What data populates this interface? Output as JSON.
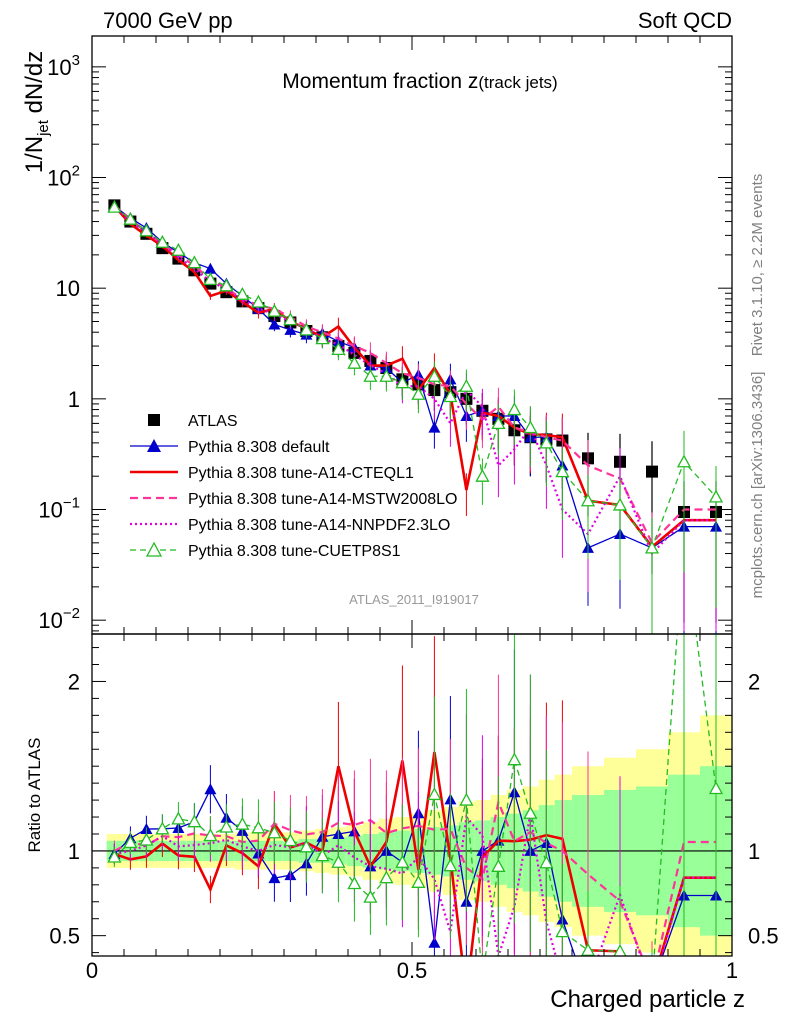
{
  "header": {
    "left": "7000 GeV pp",
    "right": "Soft QCD"
  },
  "side": {
    "rivet": "Rivet 3.1.10, ≥ 2.2M events",
    "source": "mcplots.cern.ch [arXiv:1306.3436]"
  },
  "analysis_tag": "ATLAS_2011_I919017",
  "chart_data": [
    {
      "type": "line",
      "panel": "main",
      "title_main": "Momentum fraction ",
      "title_var": "z",
      "title_sub": "(track jets)",
      "ylabel": "1/N",
      "ylabel_sub": "jet",
      "ylabel_rest": " dN/dz",
      "yscale": "log",
      "ylim": [
        0.0075,
        1900
      ],
      "xlim": [
        0,
        1
      ],
      "y_ticks": [
        {
          "value": 1000,
          "label": "10",
          "exp": "3"
        },
        {
          "value": 100,
          "label": "10",
          "exp": "2"
        },
        {
          "value": 10,
          "label": "10",
          "exp": ""
        },
        {
          "value": 1,
          "label": "1",
          "exp": ""
        },
        {
          "value": 0.1,
          "label": "10",
          "exp": "−1"
        },
        {
          "value": 0.01,
          "label": "10",
          "exp": "−2"
        }
      ],
      "x": [
        0.035,
        0.06,
        0.085,
        0.11,
        0.135,
        0.16,
        0.185,
        0.21,
        0.235,
        0.26,
        0.285,
        0.31,
        0.335,
        0.36,
        0.385,
        0.41,
        0.435,
        0.46,
        0.485,
        0.51,
        0.535,
        0.56,
        0.585,
        0.61,
        0.635,
        0.66,
        0.685,
        0.71,
        0.735,
        0.775,
        0.825,
        0.875,
        0.925,
        0.975
      ],
      "series": [
        {
          "name": "ATLAS",
          "color": "#000000",
          "style": "data",
          "values": [
            56,
            40,
            31,
            23,
            18.5,
            14.5,
            11,
            9.2,
            7.6,
            6.6,
            5.6,
            4.9,
            4.1,
            3.6,
            3.0,
            2.6,
            2.2,
            1.9,
            1.5,
            1.35,
            1.2,
            1.15,
            1.0,
            0.78,
            0.66,
            0.52,
            0.45,
            0.43,
            0.42,
            0.29,
            0.27,
            0.22,
            0.095,
            0.095
          ]
        },
        {
          "name": "Pythia 8.308 default",
          "color": "#0000cc",
          "style": "solid-tri",
          "values": [
            55,
            43,
            35,
            26,
            21,
            17,
            15,
            11,
            8.5,
            6.5,
            4.7,
            4.2,
            3.8,
            3.9,
            3.3,
            2.9,
            2.0,
            1.9,
            1.4,
            1.65,
            0.55,
            1.5,
            0.7,
            0.78,
            0.7,
            0.7,
            0.45,
            0.45,
            0.25,
            0.045,
            0.06,
            0.045,
            0.07,
            0.07
          ]
        },
        {
          "name": "Pythia 8.308 tune-A14-CTEQL1",
          "color": "#ee0000",
          "style": "solid",
          "values": [
            55,
            38,
            30,
            24,
            18,
            14,
            8.5,
            9.5,
            7.5,
            6.0,
            6.5,
            5.0,
            4.3,
            3.6,
            4.5,
            2.9,
            2.0,
            2.0,
            2.3,
            1.2,
            1.9,
            1.1,
            0.15,
            0.75,
            0.7,
            0.55,
            0.48,
            0.47,
            0.45,
            0.12,
            0.11,
            0.046,
            0.08,
            0.08
          ]
        },
        {
          "name": "Pythia 8.308 tune-A14-MSTW2008LO",
          "color": "#ff3399",
          "style": "dashed",
          "values": [
            56,
            42,
            32,
            25,
            20,
            16,
            12,
            10,
            8.0,
            7.0,
            6.5,
            5.5,
            4.5,
            4.0,
            3.5,
            3.0,
            2.6,
            2.1,
            1.7,
            1.55,
            1.35,
            1.3,
            0.9,
            0.65,
            0.85,
            0.55,
            0.5,
            0.45,
            0.42,
            0.25,
            0.19,
            0.05,
            0.1,
            0.1
          ]
        },
        {
          "name": "Pythia 8.308 tune-A14-NNPDF2.3LO",
          "color": "#e000e0",
          "style": "dotted",
          "values": [
            55,
            40,
            32,
            25,
            19,
            15,
            11.5,
            9.8,
            7.8,
            6.6,
            5.8,
            5.0,
            4.3,
            3.5,
            3.1,
            2.5,
            2.0,
            1.7,
            1.3,
            1.3,
            1.0,
            0.6,
            1.2,
            0.85,
            0.25,
            0.35,
            0.55,
            0.25,
            0.1,
            0.06,
            0.2,
            0.04,
            0.08,
            0.08
          ]
        },
        {
          "name": "Pythia 8.308 tune-CUETP8S1",
          "color": "#22bb22",
          "style": "dashed-otri",
          "values": [
            54,
            42,
            33,
            26,
            22,
            17,
            12,
            10.5,
            8.8,
            7.5,
            6.2,
            5.2,
            4.2,
            3.5,
            2.8,
            2.1,
            1.6,
            1.6,
            1.4,
            1.1,
            1.6,
            1.05,
            1.3,
            0.2,
            0.6,
            0.8,
            0.55,
            0.4,
            0.22,
            0.12,
            0.11,
            0.045,
            0.27,
            0.13
          ]
        }
      ]
    },
    {
      "type": "line",
      "panel": "ratio",
      "ylabel": "Ratio to ATLAS",
      "ylim": [
        0.38,
        2.28
      ],
      "xlim": [
        0,
        1
      ],
      "xlabel": "Charged particle z",
      "y_ticks": [
        {
          "value": 0.5,
          "label": "0.5"
        },
        {
          "value": 1,
          "label": "1"
        },
        {
          "value": 2,
          "label": "2"
        }
      ],
      "x_ticks": [
        {
          "value": 0,
          "label": "0"
        },
        {
          "value": 0.5,
          "label": "0.5"
        },
        {
          "value": 1,
          "label": "1"
        }
      ],
      "band_edges": [
        0.023,
        0.048,
        0.073,
        0.098,
        0.123,
        0.148,
        0.173,
        0.198,
        0.223,
        0.248,
        0.273,
        0.298,
        0.323,
        0.348,
        0.373,
        0.398,
        0.423,
        0.448,
        0.473,
        0.498,
        0.523,
        0.548,
        0.573,
        0.598,
        0.623,
        0.648,
        0.673,
        0.698,
        0.723,
        0.75,
        0.8,
        0.85,
        0.9,
        0.95,
        1.0
      ],
      "band_inner": [
        0.06,
        0.06,
        0.06,
        0.06,
        0.06,
        0.06,
        0.06,
        0.06,
        0.06,
        0.06,
        0.06,
        0.06,
        0.07,
        0.07,
        0.08,
        0.09,
        0.1,
        0.11,
        0.12,
        0.13,
        0.14,
        0.15,
        0.17,
        0.18,
        0.2,
        0.22,
        0.24,
        0.27,
        0.3,
        0.33,
        0.36,
        0.38,
        0.45,
        0.5
      ],
      "band_outer": [
        0.1,
        0.1,
        0.1,
        0.1,
        0.1,
        0.1,
        0.1,
        0.1,
        0.11,
        0.11,
        0.11,
        0.11,
        0.12,
        0.13,
        0.14,
        0.15,
        0.17,
        0.19,
        0.2,
        0.22,
        0.24,
        0.26,
        0.29,
        0.3,
        0.33,
        0.36,
        0.38,
        0.42,
        0.45,
        0.5,
        0.55,
        0.6,
        0.7,
        0.8
      ],
      "band_inner_color": "#99ff99",
      "band_outer_color": "#ffff99"
    }
  ]
}
